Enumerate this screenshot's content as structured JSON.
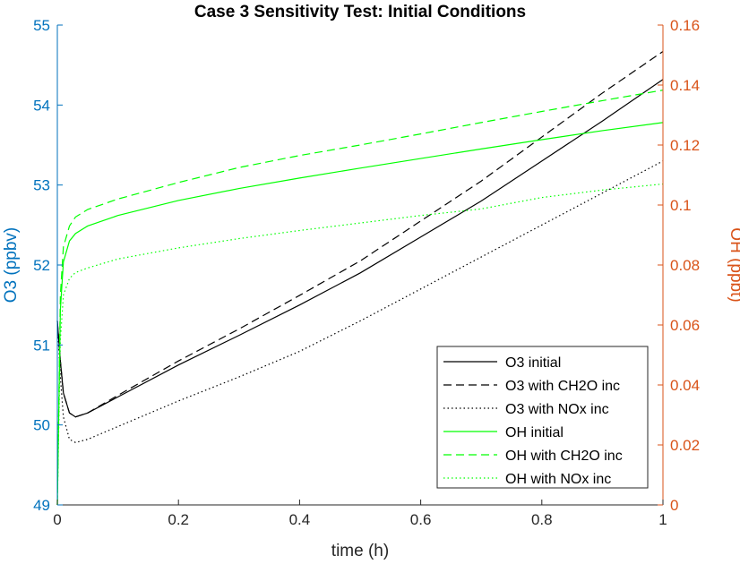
{
  "chart_data": {
    "type": "line",
    "title": "Case 3 Sensitivity Test: Initial Conditions",
    "xlabel": "time (h)",
    "ylabel_left": "O3 (ppbv)",
    "ylabel_right": "OH (ppbt)",
    "xlim": [
      0,
      1
    ],
    "ylim_left": [
      49,
      55
    ],
    "ylim_right": [
      0,
      0.16
    ],
    "x_ticks": [
      "0",
      "0.2",
      "0.4",
      "0.6",
      "0.8",
      "1"
    ],
    "y_left_ticks": [
      "49",
      "50",
      "51",
      "52",
      "53",
      "54",
      "55"
    ],
    "y_right_ticks": [
      "0",
      "0.02",
      "0.04",
      "0.06",
      "0.08",
      "0.1",
      "0.12",
      "0.14",
      "0.16"
    ],
    "left_axis_color": "#0072BD",
    "right_axis_color": "#D95319",
    "legend_position": "bottom-right",
    "series": [
      {
        "name": "O3 initial",
        "axis": "left",
        "color": "#000000",
        "dash": "solid",
        "x": [
          0,
          0.005,
          0.01,
          0.02,
          0.03,
          0.05,
          0.1,
          0.2,
          0.3,
          0.4,
          0.5,
          0.6,
          0.7,
          0.8,
          0.9,
          1.0
        ],
        "y": [
          51.3,
          50.8,
          50.4,
          50.15,
          50.1,
          50.15,
          50.35,
          50.75,
          51.12,
          51.5,
          51.9,
          52.35,
          52.8,
          53.3,
          53.8,
          54.32
        ]
      },
      {
        "name": "O3 with CH2O inc",
        "axis": "left",
        "color": "#000000",
        "dash": "dashed",
        "x": [
          0,
          0.005,
          0.01,
          0.02,
          0.03,
          0.05,
          0.1,
          0.2,
          0.3,
          0.4,
          0.5,
          0.6,
          0.7,
          0.8,
          0.9,
          1.0
        ],
        "y": [
          51.3,
          50.8,
          50.4,
          50.15,
          50.1,
          50.15,
          50.37,
          50.8,
          51.2,
          51.62,
          52.05,
          52.55,
          53.05,
          53.6,
          54.15,
          54.67
        ]
      },
      {
        "name": "O3 with NOx inc",
        "axis": "left",
        "color": "#000000",
        "dash": "dotted",
        "x": [
          0,
          0.005,
          0.01,
          0.02,
          0.03,
          0.05,
          0.1,
          0.2,
          0.3,
          0.4,
          0.5,
          0.6,
          0.7,
          0.8,
          0.9,
          1.0
        ],
        "y": [
          51.3,
          50.6,
          50.1,
          49.82,
          49.78,
          49.82,
          49.98,
          50.3,
          50.6,
          50.92,
          51.3,
          51.7,
          52.1,
          52.5,
          52.9,
          53.3
        ]
      },
      {
        "name": "OH initial",
        "axis": "right",
        "color": "#00FF00",
        "dash": "solid",
        "x": [
          0,
          0.005,
          0.01,
          0.02,
          0.03,
          0.05,
          0.1,
          0.2,
          0.3,
          0.4,
          0.5,
          0.6,
          0.7,
          0.8,
          0.9,
          1.0
        ],
        "y": [
          0.0,
          0.065,
          0.081,
          0.088,
          0.0905,
          0.093,
          0.0965,
          0.1015,
          0.1055,
          0.109,
          0.1123,
          0.1155,
          0.1187,
          0.1218,
          0.1248,
          0.1275
        ]
      },
      {
        "name": "OH with CH2O inc",
        "axis": "right",
        "color": "#00FF00",
        "dash": "dashed",
        "x": [
          0,
          0.005,
          0.01,
          0.02,
          0.03,
          0.05,
          0.1,
          0.2,
          0.3,
          0.4,
          0.5,
          0.6,
          0.7,
          0.8,
          0.9,
          1.0
        ],
        "y": [
          0.0,
          0.07,
          0.086,
          0.093,
          0.096,
          0.0985,
          0.102,
          0.1075,
          0.1125,
          0.1165,
          0.12,
          0.1237,
          0.1275,
          0.1312,
          0.1348,
          0.1383
        ]
      },
      {
        "name": "OH with NOx inc",
        "axis": "right",
        "color": "#00FF00",
        "dash": "dotted",
        "x": [
          0,
          0.005,
          0.01,
          0.02,
          0.03,
          0.05,
          0.1,
          0.2,
          0.3,
          0.4,
          0.5,
          0.6,
          0.7,
          0.8,
          0.9,
          1.0
        ],
        "y": [
          0.0,
          0.055,
          0.07,
          0.0755,
          0.0775,
          0.079,
          0.082,
          0.0857,
          0.0888,
          0.0915,
          0.094,
          0.0965,
          0.0987,
          0.1025,
          0.105,
          0.107
        ]
      }
    ]
  }
}
